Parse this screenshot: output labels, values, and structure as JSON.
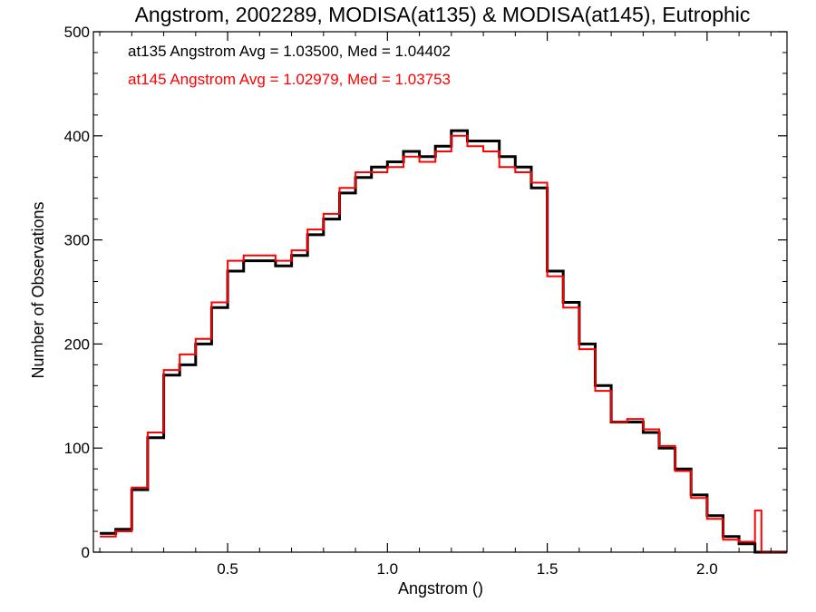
{
  "chart_data": {
    "type": "line",
    "style": "histogram-step",
    "title": "Angstrom, 2002289, MODISA(at135) & MODISA(at145), Eutrophic",
    "xlabel": "Angstrom ()",
    "ylabel": "Number of Observations",
    "xlim": [
      0.08,
      2.25
    ],
    "ylim": [
      0,
      500
    ],
    "xticks": [
      0.5,
      1.0,
      1.5,
      2.0
    ],
    "xtick_labels": [
      "0.5",
      "1.0",
      "1.5",
      "2.0"
    ],
    "yticks": [
      0,
      100,
      200,
      300,
      400,
      500
    ],
    "ytick_labels": [
      "0",
      "100",
      "200",
      "300",
      "400",
      "500"
    ],
    "grid": false,
    "legend_placement": "top-left",
    "annotations": [
      {
        "text": "at135 Angstrom Avg = 1.03500, Med = 1.04402",
        "color": "#000000"
      },
      {
        "text": "at145 Angstrom Avg = 1.02979, Med = 1.03753",
        "color": "#ff0000"
      }
    ],
    "series": [
      {
        "color": "#000000",
        "points": [
          [
            0.1,
            18
          ],
          [
            0.15,
            22
          ],
          [
            0.2,
            60
          ],
          [
            0.25,
            110
          ],
          [
            0.3,
            170
          ],
          [
            0.35,
            180
          ],
          [
            0.4,
            200
          ],
          [
            0.45,
            235
          ],
          [
            0.5,
            270
          ],
          [
            0.55,
            280
          ],
          [
            0.6,
            280
          ],
          [
            0.65,
            275
          ],
          [
            0.7,
            285
          ],
          [
            0.75,
            305
          ],
          [
            0.8,
            320
          ],
          [
            0.85,
            345
          ],
          [
            0.9,
            360
          ],
          [
            0.95,
            370
          ],
          [
            1.0,
            375
          ],
          [
            1.05,
            385
          ],
          [
            1.1,
            380
          ],
          [
            1.15,
            390
          ],
          [
            1.2,
            405
          ],
          [
            1.25,
            395
          ],
          [
            1.3,
            395
          ],
          [
            1.35,
            380
          ],
          [
            1.4,
            370
          ],
          [
            1.45,
            350
          ],
          [
            1.5,
            270
          ],
          [
            1.55,
            240
          ],
          [
            1.6,
            200
          ],
          [
            1.65,
            160
          ],
          [
            1.7,
            125
          ],
          [
            1.75,
            125
          ],
          [
            1.8,
            115
          ],
          [
            1.85,
            100
          ],
          [
            1.9,
            80
          ],
          [
            1.95,
            55
          ],
          [
            2.0,
            35
          ],
          [
            2.05,
            15
          ],
          [
            2.1,
            8
          ],
          [
            2.15,
            0
          ],
          [
            2.25,
            0
          ]
        ]
      },
      {
        "color": "#ff0000",
        "points": [
          [
            0.1,
            15
          ],
          [
            0.15,
            20
          ],
          [
            0.2,
            62
          ],
          [
            0.25,
            115
          ],
          [
            0.3,
            175
          ],
          [
            0.35,
            190
          ],
          [
            0.4,
            205
          ],
          [
            0.45,
            240
          ],
          [
            0.5,
            280
          ],
          [
            0.55,
            285
          ],
          [
            0.6,
            285
          ],
          [
            0.65,
            280
          ],
          [
            0.7,
            290
          ],
          [
            0.75,
            310
          ],
          [
            0.8,
            325
          ],
          [
            0.85,
            350
          ],
          [
            0.9,
            365
          ],
          [
            0.95,
            365
          ],
          [
            1.0,
            370
          ],
          [
            1.05,
            380
          ],
          [
            1.1,
            375
          ],
          [
            1.15,
            385
          ],
          [
            1.2,
            400
          ],
          [
            1.25,
            390
          ],
          [
            1.3,
            385
          ],
          [
            1.35,
            370
          ],
          [
            1.4,
            365
          ],
          [
            1.45,
            355
          ],
          [
            1.5,
            265
          ],
          [
            1.55,
            235
          ],
          [
            1.6,
            195
          ],
          [
            1.65,
            155
          ],
          [
            1.7,
            125
          ],
          [
            1.75,
            128
          ],
          [
            1.8,
            118
          ],
          [
            1.85,
            102
          ],
          [
            1.9,
            78
          ],
          [
            1.95,
            52
          ],
          [
            2.0,
            32
          ],
          [
            2.05,
            12
          ],
          [
            2.1,
            10
          ],
          [
            2.15,
            40
          ],
          [
            2.17,
            0
          ],
          [
            2.25,
            0
          ]
        ]
      }
    ]
  }
}
